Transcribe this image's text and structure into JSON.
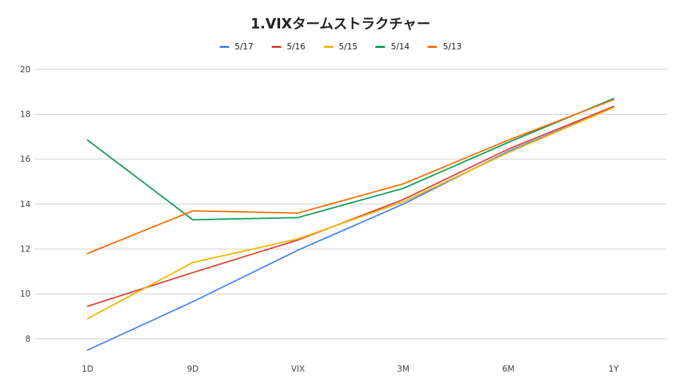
{
  "chart_data": {
    "type": "line",
    "title": "1.VIXタームストラクチャー",
    "xlabel": "",
    "ylabel": "",
    "categories": [
      "1D",
      "9D",
      "VIX",
      "3M",
      "6M",
      "1Y"
    ],
    "ylim": [
      7,
      21
    ],
    "yticks": [
      8,
      10,
      12,
      14,
      16,
      18,
      20
    ],
    "grid": true,
    "legend": "top-center",
    "series": [
      {
        "name": "5/17",
        "color": "#4285F4",
        "values": [
          7.5,
          9.65,
          11.95,
          14.0,
          16.35,
          18.3
        ]
      },
      {
        "name": "5/16",
        "color": "#DB4437",
        "values": [
          9.45,
          10.95,
          12.4,
          14.2,
          16.45,
          18.35
        ]
      },
      {
        "name": "5/15",
        "color": "#F4B400",
        "values": [
          8.9,
          11.4,
          12.45,
          14.1,
          16.3,
          18.3
        ]
      },
      {
        "name": "5/14",
        "color": "#0F9D58",
        "values": [
          16.85,
          13.3,
          13.4,
          14.7,
          16.75,
          18.7
        ]
      },
      {
        "name": "5/13",
        "color": "#FF6D01",
        "values": [
          11.8,
          13.7,
          13.6,
          14.9,
          16.85,
          18.65
        ]
      }
    ]
  }
}
